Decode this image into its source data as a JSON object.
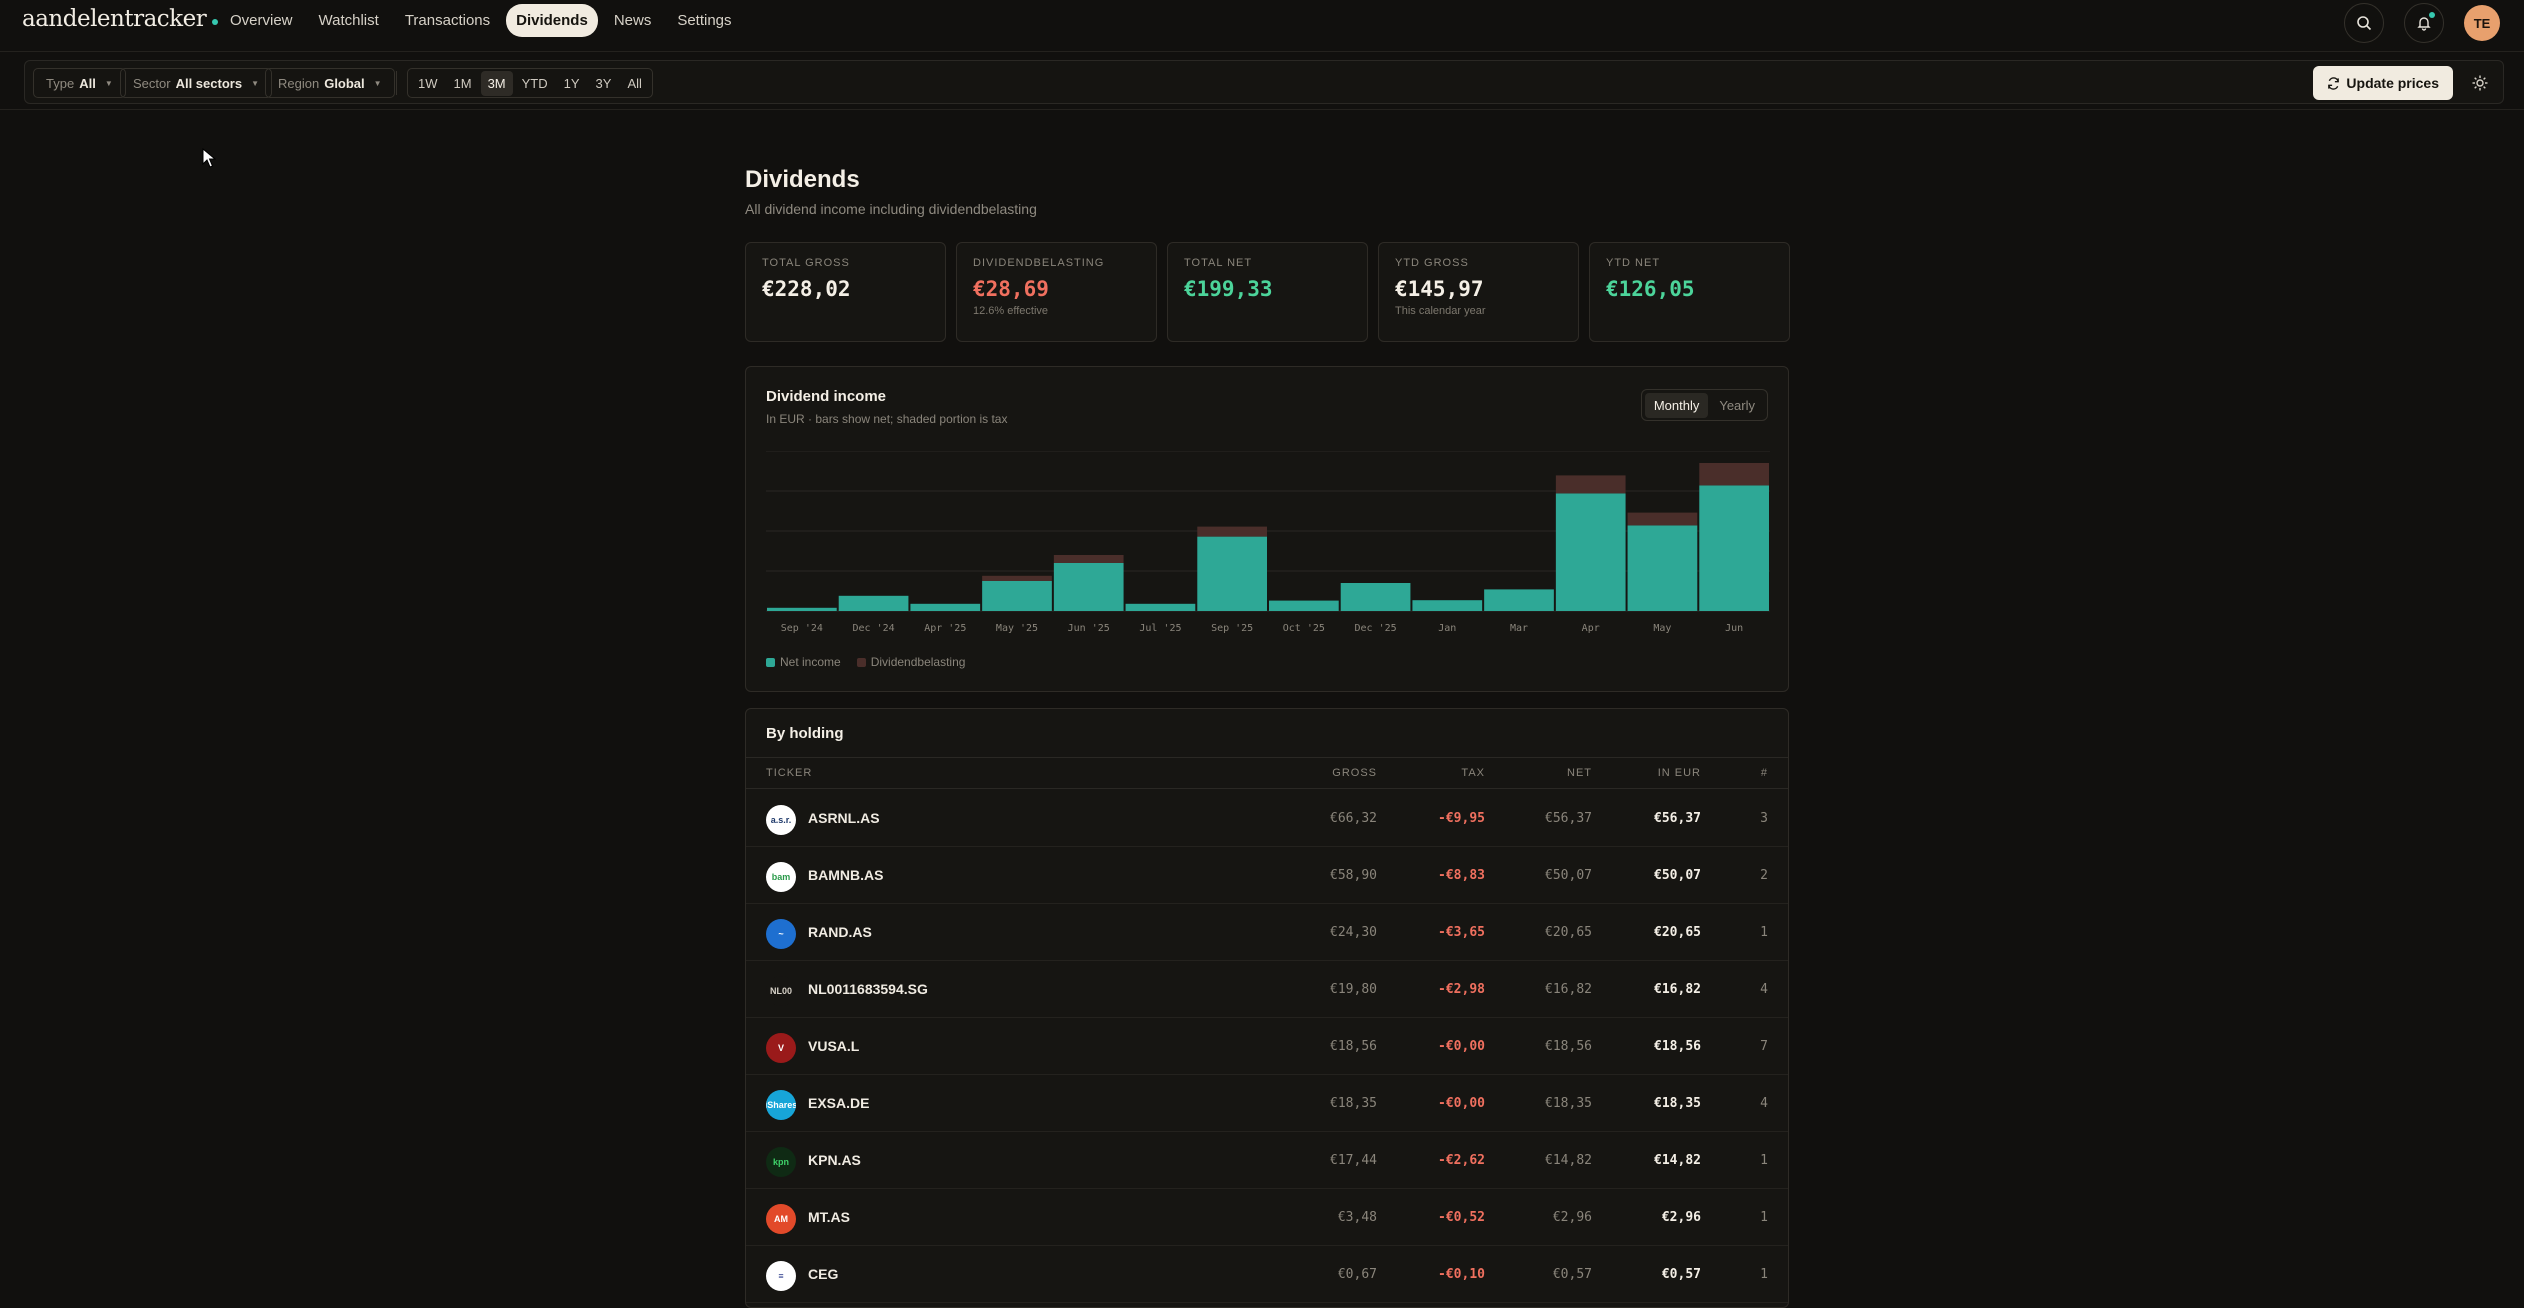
{
  "app": {
    "logo": "aandelentracker"
  },
  "nav": {
    "items": [
      "Overview",
      "Watchlist",
      "Transactions",
      "Dividends",
      "News",
      "Settings"
    ],
    "active": "Dividends"
  },
  "user": {
    "initials": "TE"
  },
  "filters": {
    "type_label": "Type",
    "type_value": "All",
    "sector_label": "Sector",
    "sector_value": "All sectors",
    "region_label": "Region",
    "region_value": "Global",
    "ranges": [
      "1W",
      "1M",
      "3M",
      "YTD",
      "1Y",
      "3Y",
      "All"
    ],
    "active_range": "3M",
    "update_label": "Update prices"
  },
  "page": {
    "title": "Dividends",
    "subtitle": "All dividend income including dividendbelasting"
  },
  "stats": [
    {
      "label": "TOTAL GROSS",
      "value": "€228,02",
      "note": ""
    },
    {
      "label": "DIVIDENDBELASTING",
      "value": "€28,69",
      "note": "12.6% effective"
    },
    {
      "label": "TOTAL NET",
      "value": "€199,33",
      "note": ""
    },
    {
      "label": "YTD GROSS",
      "value": "€145,97",
      "note": "This calendar year"
    },
    {
      "label": "YTD NET",
      "value": "€126,05",
      "note": ""
    }
  ],
  "income": {
    "title": "Dividend income",
    "subtitle": "In EUR · bars show net; shaded portion is tax",
    "toggle": [
      "Monthly",
      "Yearly"
    ],
    "toggle_active": "Monthly",
    "legend": [
      "Net income",
      "Dividendbelasting"
    ]
  },
  "chart_data": {
    "type": "bar",
    "stacked": true,
    "categories": [
      "Sep '24",
      "Dec '24",
      "Apr '25",
      "May '25",
      "Jun '25",
      "Jul '25",
      "Sep '25",
      "Oct '25",
      "Dec '25",
      "Jan",
      "Mar",
      "Apr",
      "May",
      "Jun"
    ],
    "series": [
      {
        "name": "Net income",
        "values": [
          0.8,
          3.8,
          1.8,
          7.5,
          12.0,
          1.8,
          18.6,
          2.6,
          7.0,
          2.7,
          5.4,
          29.4,
          21.4,
          31.4
        ]
      },
      {
        "name": "Dividendbelasting",
        "values": [
          0,
          0,
          0,
          1.3,
          2.0,
          0,
          2.5,
          0,
          0,
          0,
          0,
          4.5,
          3.2,
          5.6
        ]
      }
    ],
    "ylim": [
      0,
      40
    ],
    "grid": true,
    "colors": {
      "net": "#2ea896",
      "tax": "#4a2e2a"
    }
  },
  "holdings": {
    "title": "By holding",
    "columns": [
      "TICKER",
      "GROSS",
      "TAX",
      "NET",
      "IN EUR",
      "#"
    ],
    "rows": [
      {
        "ticker": "ASRNL.AS",
        "logo": "a.s.r.",
        "bg": "#ffffff",
        "fg": "#1f3a6b",
        "gross": "€66,32",
        "tax": "-€9,95",
        "net": "€56,37",
        "eur": "€56,37",
        "count": "3"
      },
      {
        "ticker": "BAMNB.AS",
        "logo": "bam",
        "bg": "#ffffff",
        "fg": "#2a9a4a",
        "gross": "€58,90",
        "tax": "-€8,83",
        "net": "€50,07",
        "eur": "€50,07",
        "count": "2"
      },
      {
        "ticker": "RAND.AS",
        "logo": "~",
        "bg": "#1e6fd0",
        "fg": "#ffffff",
        "gross": "€24,30",
        "tax": "-€3,65",
        "net": "€20,65",
        "eur": "€20,65",
        "count": "1"
      },
      {
        "ticker": "NL0011683594.SG",
        "logo": "NL00",
        "bg": "#161512",
        "fg": "#d8d3c9",
        "gross": "€19,80",
        "tax": "-€2,98",
        "net": "€16,82",
        "eur": "€16,82",
        "count": "4"
      },
      {
        "ticker": "VUSA.L",
        "logo": "V",
        "bg": "#9a1a1a",
        "fg": "#ffffff",
        "gross": "€18,56",
        "tax": "-€0,00",
        "net": "€18,56",
        "eur": "€18,56",
        "count": "7"
      },
      {
        "ticker": "EXSA.DE",
        "logo": "iShares",
        "bg": "#17a5d8",
        "fg": "#ffffff",
        "gross": "€18,35",
        "tax": "-€0,00",
        "net": "€18,35",
        "eur": "€18,35",
        "count": "4"
      },
      {
        "ticker": "KPN.AS",
        "logo": "kpn",
        "bg": "#0f2a14",
        "fg": "#3fd26a",
        "gross": "€17,44",
        "tax": "-€2,62",
        "net": "€14,82",
        "eur": "€14,82",
        "count": "1"
      },
      {
        "ticker": "MT.AS",
        "logo": "AM",
        "bg": "#e24a2a",
        "fg": "#ffffff",
        "gross": "€3,48",
        "tax": "-€0,52",
        "net": "€2,96",
        "eur": "€2,96",
        "count": "1"
      },
      {
        "ticker": "CEG",
        "logo": "≡",
        "bg": "#ffffff",
        "fg": "#2a3a8a",
        "gross": "€0,67",
        "tax": "-€0,10",
        "net": "€0,57",
        "eur": "€0,57",
        "count": "1"
      }
    ]
  }
}
